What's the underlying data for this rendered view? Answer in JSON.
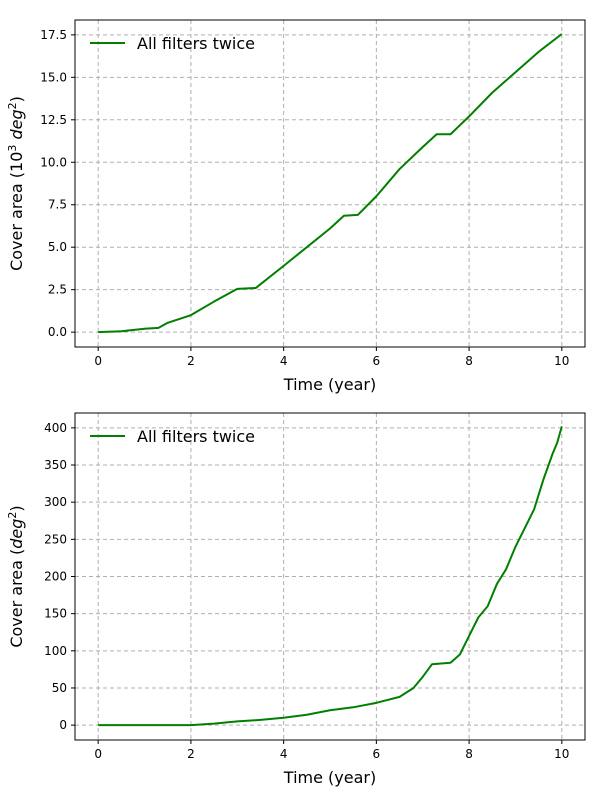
{
  "chart_data": [
    {
      "type": "line",
      "xlabel": "Time (year)",
      "ylabel": {
        "prefix": "Cover area (10",
        "exp1": "3",
        "mid": " deg",
        "exp2": "2",
        "suffix": ")"
      },
      "xlim": [
        -0.5,
        10.5
      ],
      "ylim": [
        -0.875,
        18.375
      ],
      "xticks": [
        0,
        2,
        4,
        6,
        8,
        10
      ],
      "xtick_labels": [
        "0",
        "2",
        "4",
        "6",
        "8",
        "10"
      ],
      "yticks": [
        0,
        2.5,
        5,
        7.5,
        10,
        12.5,
        15,
        17.5
      ],
      "ytick_labels": [
        "0.0",
        "2.5",
        "5.0",
        "7.5",
        "10.0",
        "12.5",
        "15.0",
        "17.5"
      ],
      "grid": true,
      "legend_position": "upper-left",
      "series": [
        {
          "name": "All filters twice",
          "color": "#008000",
          "x": [
            0,
            0.5,
            1.0,
            1.3,
            1.5,
            2.0,
            2.5,
            3.0,
            3.4,
            4.0,
            4.5,
            5.0,
            5.3,
            5.6,
            6.0,
            6.5,
            7.0,
            7.3,
            7.6,
            8.0,
            8.5,
            9.0,
            9.5,
            10.0
          ],
          "y": [
            0.0,
            0.05,
            0.2,
            0.25,
            0.55,
            1.0,
            1.8,
            2.55,
            2.6,
            3.9,
            5.0,
            6.1,
            6.85,
            6.9,
            8.0,
            9.6,
            10.9,
            11.65,
            11.65,
            12.7,
            14.1,
            15.3,
            16.5,
            17.55
          ]
        }
      ]
    },
    {
      "type": "line",
      "xlabel": "Time (year)",
      "ylabel": {
        "prefix": "Cover area (",
        "exp1": "",
        "mid": "deg",
        "exp2": "2",
        "suffix": ")"
      },
      "xlim": [
        -0.5,
        10.5
      ],
      "ylim": [
        -20,
        420
      ],
      "xticks": [
        0,
        2,
        4,
        6,
        8,
        10
      ],
      "xtick_labels": [
        "0",
        "2",
        "4",
        "6",
        "8",
        "10"
      ],
      "yticks": [
        0,
        50,
        100,
        150,
        200,
        250,
        300,
        350,
        400
      ],
      "ytick_labels": [
        "0",
        "50",
        "100",
        "150",
        "200",
        "250",
        "300",
        "350",
        "400"
      ],
      "grid": true,
      "legend_position": "upper-left",
      "series": [
        {
          "name": "All filters twice",
          "color": "#008000",
          "x": [
            0,
            1.0,
            2.0,
            2.5,
            3.0,
            3.5,
            4.0,
            4.5,
            5.0,
            5.5,
            6.0,
            6.5,
            6.8,
            7.0,
            7.2,
            7.6,
            7.8,
            8.0,
            8.2,
            8.4,
            8.6,
            8.8,
            9.0,
            9.2,
            9.4,
            9.6,
            9.8,
            9.9,
            10.0
          ],
          "y": [
            0,
            0,
            0,
            2,
            5,
            7,
            10,
            14,
            20,
            24,
            30,
            38,
            50,
            65,
            82,
            84,
            95,
            120,
            145,
            160,
            190,
            210,
            240,
            265,
            290,
            330,
            365,
            380,
            402
          ]
        }
      ]
    }
  ]
}
